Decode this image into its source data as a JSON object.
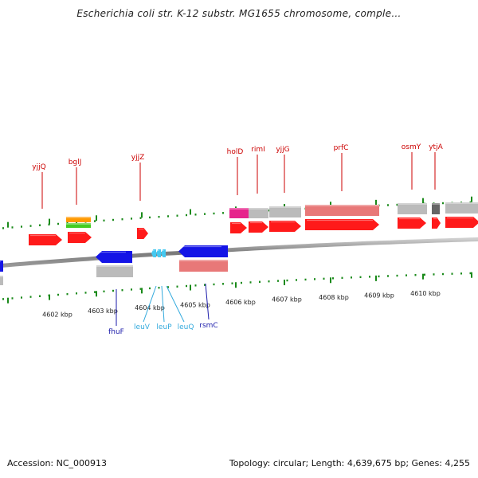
{
  "title": "Escherichia coli str. K-12 substr. MG1655 chromosome, comple…",
  "footer": {
    "accession": "Accession: NC_000913",
    "topology": "Topology: circular; Length: 4,639,675 bp; Genes: 4,255"
  },
  "colors": {
    "forward_gene": "#ff1a1a",
    "reverse_gene": "#1414e6",
    "trna": "#44c8f0",
    "feature_pale_red": "#e87878",
    "feature_gray": "#bbbbbb",
    "feature_dark_gray": "#666666",
    "feature_magenta": "#e6248c",
    "feature_orange": "#ff9900",
    "feature_green": "#44cc22",
    "tick": "#1a8a1a",
    "backbone": "#888888",
    "label_top": "#cc0000",
    "label_blue": "#1a1aaa",
    "label_cyan": "#33aadd"
  },
  "axis_labels": [
    "4602 kbp",
    "4603 kbp",
    "4604 kbp",
    "4605 kbp",
    "4606 kbp",
    "4607 kbp",
    "4608 kbp",
    "4609 kbp",
    "4610 kbp"
  ],
  "genes_top": [
    "yjjQ",
    "bglJ",
    "yjjZ",
    "holD",
    "rimI",
    "yjjG",
    "prfC",
    "osmY",
    "ytjA"
  ],
  "genes_bottom": [
    {
      "name": "fhuF",
      "color": "label_blue"
    },
    {
      "name": "leuV",
      "color": "label_cyan"
    },
    {
      "name": "leuP",
      "color": "label_cyan"
    },
    {
      "name": "leuQ",
      "color": "label_cyan"
    },
    {
      "name": "rsmC",
      "color": "label_blue"
    }
  ]
}
